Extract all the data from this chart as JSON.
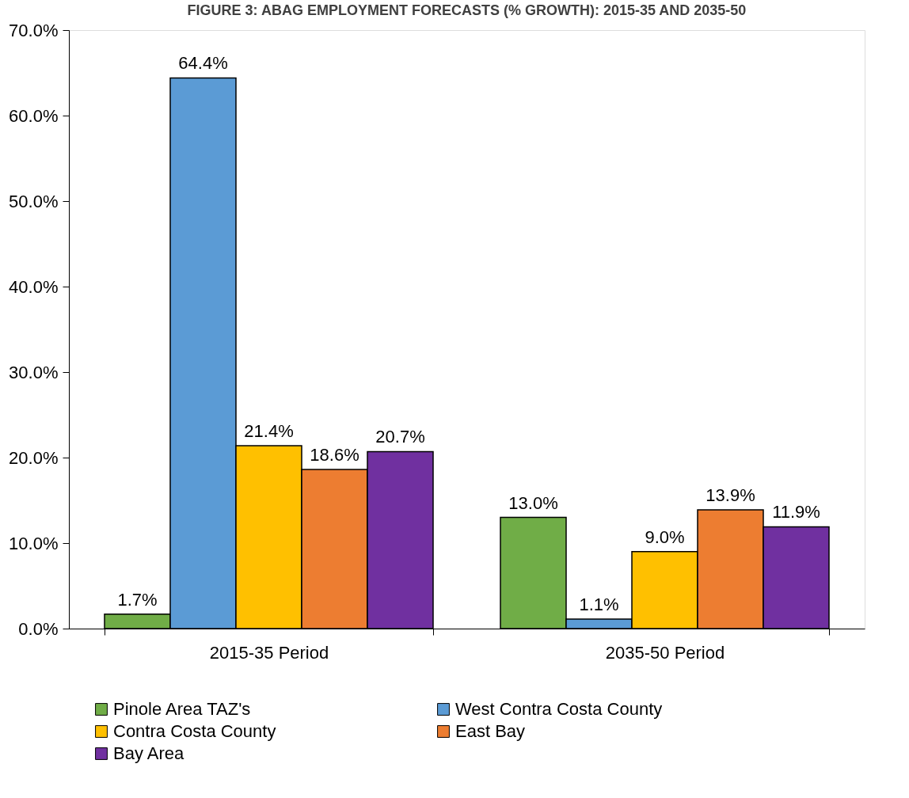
{
  "chart_data": {
    "type": "bar",
    "title": "FIGURE 3: ABAG EMPLOYMENT FORECASTS (% GROWTH): 2015-35 AND 2035-50",
    "categories": [
      "2015-35 Period",
      "2035-50 Period"
    ],
    "series": [
      {
        "name": "Pinole Area TAZ's",
        "color": "#70ad47",
        "values": [
          1.7,
          13.0
        ],
        "value_labels": [
          "1.7%",
          "13.0%"
        ]
      },
      {
        "name": "West Contra Costa County",
        "color": "#5b9bd5",
        "values": [
          64.4,
          1.1
        ],
        "value_labels": [
          "64.4%",
          "1.1%"
        ]
      },
      {
        "name": "Contra Costa County",
        "color": "#ffc000",
        "values": [
          21.4,
          9.0
        ],
        "value_labels": [
          "21.4%",
          "9.0%"
        ]
      },
      {
        "name": "East Bay",
        "color": "#ed7d31",
        "values": [
          18.6,
          13.9
        ],
        "value_labels": [
          "18.6%",
          "13.9%"
        ]
      },
      {
        "name": "Bay Area",
        "color": "#7030a0",
        "values": [
          20.7,
          11.9
        ],
        "value_labels": [
          "20.7%",
          "11.9%"
        ]
      }
    ],
    "ylim": [
      0,
      70
    ],
    "yticks": [
      {
        "value": 0,
        "label": "0.0%"
      },
      {
        "value": 10,
        "label": "10.0%"
      },
      {
        "value": 20,
        "label": "20.0%"
      },
      {
        "value": 30,
        "label": "30.0%"
      },
      {
        "value": 40,
        "label": "40.0%"
      },
      {
        "value": 50,
        "label": "50.0%"
      },
      {
        "value": 60,
        "label": "60.0%"
      },
      {
        "value": 70,
        "label": "70.0%"
      }
    ],
    "grid": false,
    "legend": "bottom"
  }
}
